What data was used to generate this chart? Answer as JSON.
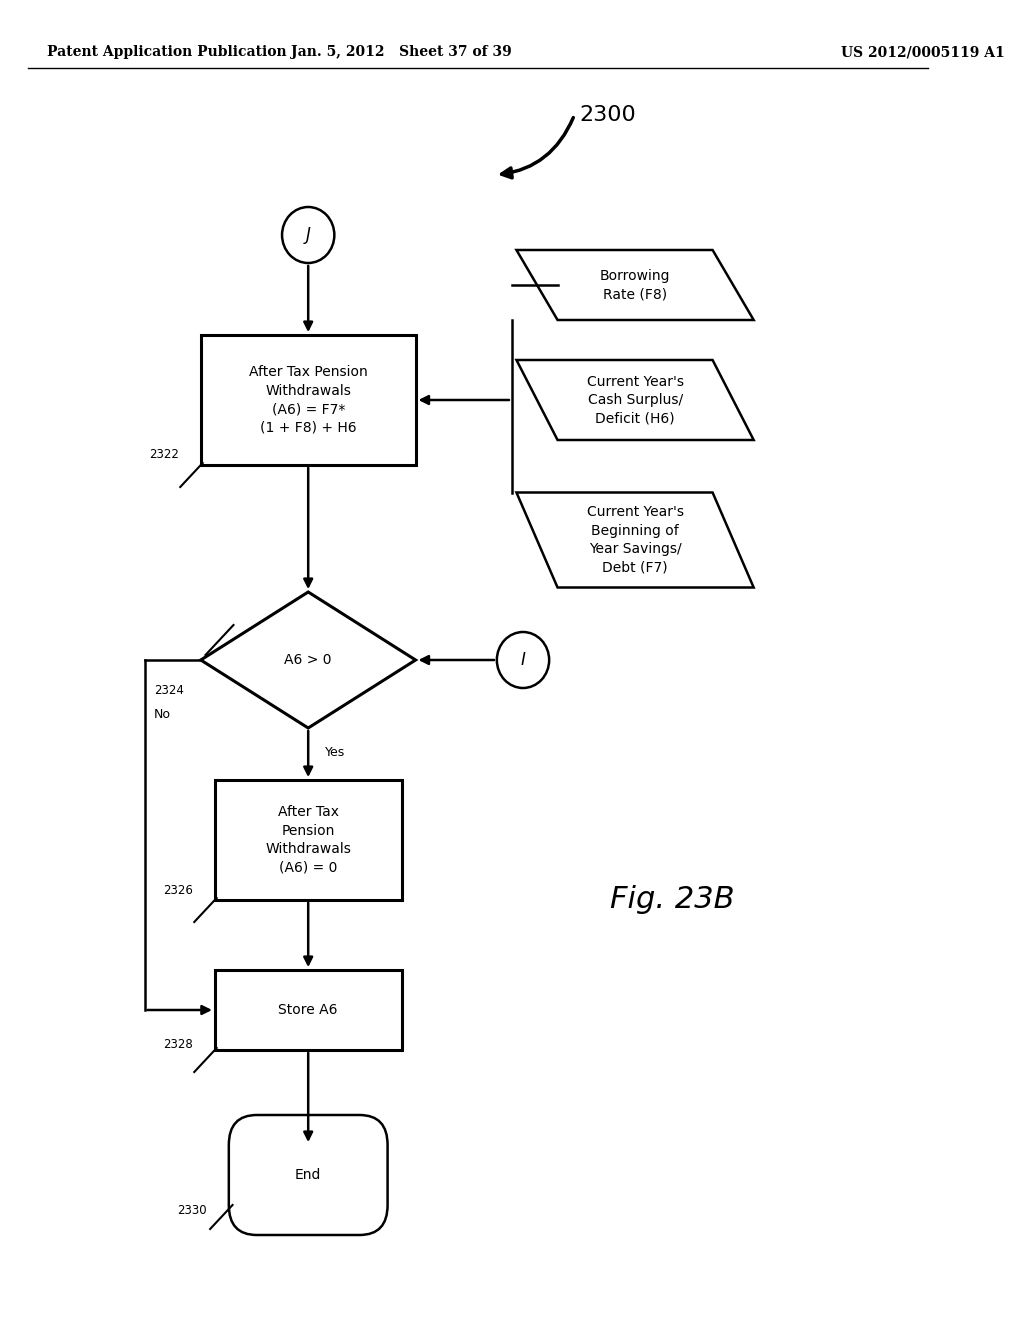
{
  "header_left": "Patent Application Publication",
  "header_mid": "Jan. 5, 2012   Sheet 37 of 39",
  "header_right": "US 2012/0005119 A1",
  "fig_label": "Fig. 23B",
  "diagram_label": "2300",
  "background_color": "#ffffff"
}
